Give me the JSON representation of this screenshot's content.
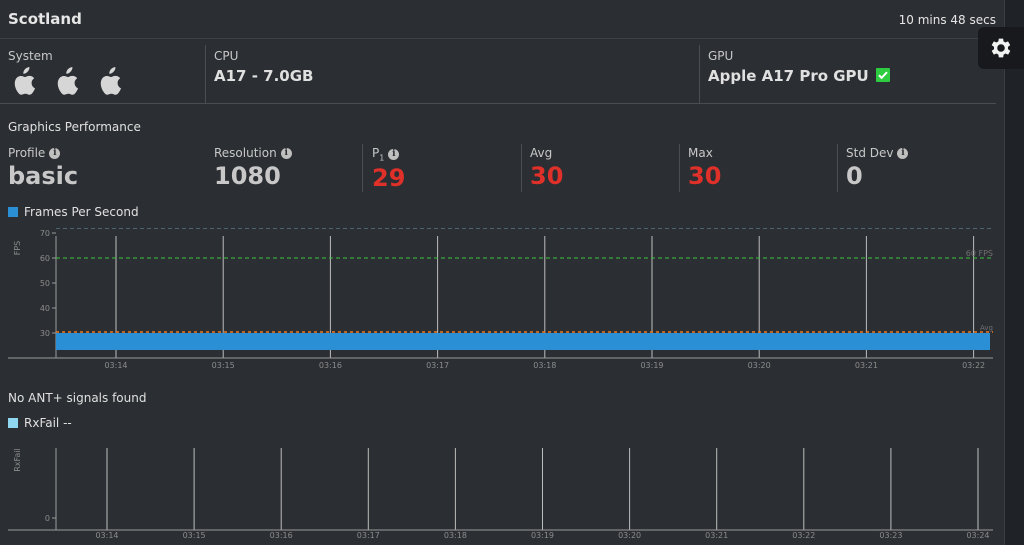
{
  "header": {
    "title": "Scotland",
    "duration": "10 mins 48 secs"
  },
  "settings": {
    "icon": "gear-icon"
  },
  "system": {
    "system_label": "System",
    "cpu_label": "CPU",
    "cpu_value": "A17 - 7.0GB",
    "gpu_label": "GPU",
    "gpu_value": "Apple A17 Pro GPU",
    "icons": [
      "apple-icon",
      "apple-icon",
      "apple-icon"
    ]
  },
  "graphics": {
    "title": "Graphics Performance",
    "stats": [
      {
        "label": "Profile",
        "value": "basic",
        "color": "#c8c8c8"
      },
      {
        "label": "Resolution",
        "value": "1080",
        "color": "#c8c8c8"
      },
      {
        "label": "P1",
        "value": "29",
        "color": "#e0302a"
      },
      {
        "label": "Avg",
        "value": "30",
        "color": "#e0302a"
      },
      {
        "label": "Max",
        "value": "30",
        "color": "#e0302a"
      },
      {
        "label": "Std Dev",
        "value": "0",
        "color": "#c8c8c8"
      }
    ],
    "legend": "Frames Per Second"
  },
  "ant": {
    "message": "No ANT+ signals found",
    "legend": "RxFail --"
  },
  "chart_data": [
    {
      "type": "area",
      "ylabel": "FPS",
      "ylim": [
        20,
        72
      ],
      "yticks": [
        30,
        40,
        50,
        60,
        70
      ],
      "xticks": [
        "03:14",
        "03:15",
        "03:16",
        "03:17",
        "03:18",
        "03:19",
        "03:20",
        "03:21",
        "03:22"
      ],
      "series": [
        {
          "name": "Frames Per Second",
          "value": 30,
          "color": "#2b8fd6"
        }
      ],
      "reference_lines": [
        {
          "label": "60 FPS",
          "value": 60,
          "color": "#3ec43e"
        },
        {
          "label": "Avg",
          "value": 30,
          "color": "#f07820"
        }
      ],
      "max_line": 72,
      "grid": "vertical"
    },
    {
      "type": "line",
      "ylabel": "RxFail",
      "yticks": [
        0
      ],
      "xticks": [
        "03:14",
        "03:15",
        "03:16",
        "03:17",
        "03:18",
        "03:19",
        "03:20",
        "03:21",
        "03:22",
        "03:23",
        "03:24"
      ],
      "series": [],
      "grid": "vertical"
    }
  ]
}
